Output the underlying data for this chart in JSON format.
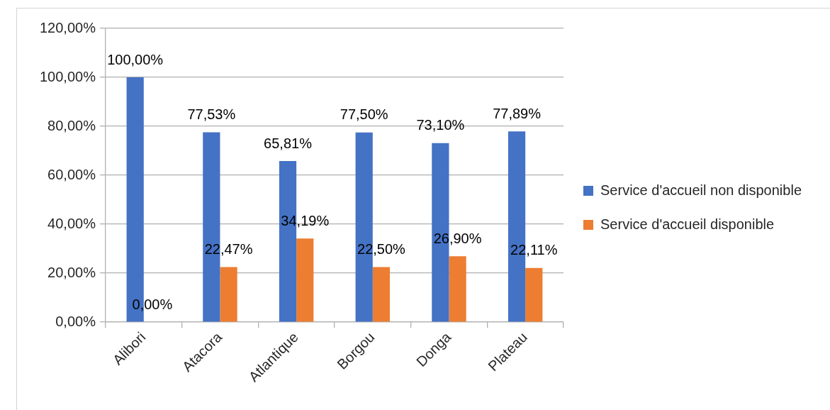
{
  "chart_data": {
    "type": "bar",
    "categories": [
      "Alibori",
      "Atacora",
      "Atlantique",
      "Borgou",
      "Donga",
      "Plateau"
    ],
    "series": [
      {
        "name": "Service d'accueil non disponible",
        "color": "#4472c4",
        "values": [
          100.0,
          77.53,
          65.81,
          77.5,
          73.1,
          77.89
        ],
        "value_labels": [
          "100,00%",
          "77,53%",
          "65,81%",
          "77,50%",
          "73,10%",
          "77,89%"
        ]
      },
      {
        "name": "Service d'accueil disponible",
        "color": "#ed7d31",
        "values": [
          0.0,
          22.47,
          34.19,
          22.5,
          26.9,
          22.11
        ],
        "value_labels": [
          "0,00%",
          "22,47%",
          "34,19%",
          "22,50%",
          "26,90%",
          "22,11%"
        ]
      }
    ],
    "ylim": [
      0,
      120
    ],
    "yticks": [
      {
        "value": 0,
        "label": "0,00%"
      },
      {
        "value": 20,
        "label": "20,00%"
      },
      {
        "value": 40,
        "label": "40,00%"
      },
      {
        "value": 60,
        "label": "60,00%"
      },
      {
        "value": 80,
        "label": "80,00%"
      },
      {
        "value": 100,
        "label": "100,00%"
      },
      {
        "value": 120,
        "label": "120,00%"
      }
    ],
    "grid": "y",
    "legend": "right"
  }
}
